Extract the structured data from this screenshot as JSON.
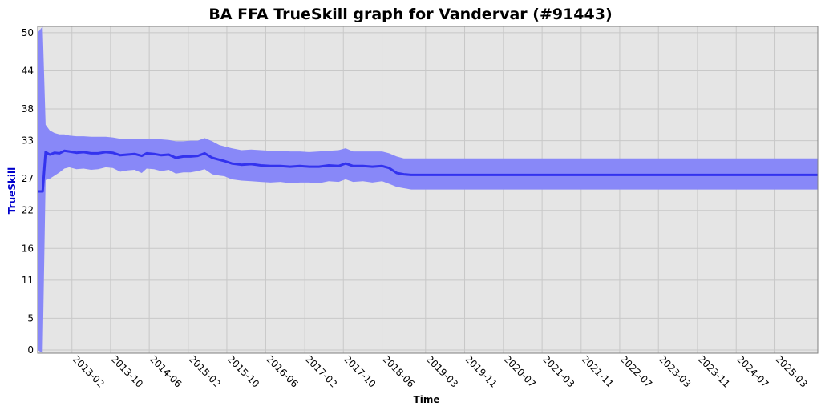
{
  "chart_data": {
    "type": "line",
    "title": "BA FFA TrueSkill graph for Vandervar (#91443)",
    "xlabel": "Time",
    "ylabel": "TrueSkill",
    "ylim": [
      -0.5,
      51
    ],
    "yticks": [
      0,
      5,
      11,
      16,
      22,
      27,
      33,
      38,
      44,
      50
    ],
    "xlim": [
      "2012-07-01",
      "2025-11-25"
    ],
    "xticks": [
      "2013-02",
      "2013-10",
      "2014-06",
      "2015-02",
      "2015-10",
      "2016-06",
      "2017-02",
      "2017-10",
      "2018-06",
      "2019-03",
      "2019-11",
      "2020-07",
      "2021-03",
      "2021-11",
      "2022-07",
      "2023-03",
      "2023-11",
      "2024-07",
      "2025-03"
    ],
    "grid": true,
    "legend": "none",
    "colors": {
      "line": "#3333ee",
      "band": "#8888f8",
      "plot_bg": "#e5e5e5",
      "ylabel": "#0000cc"
    },
    "series": [
      {
        "x": [
          "2012-07-01",
          "2012-08-01",
          "2012-08-20",
          "2012-09-15",
          "2012-10-15",
          "2012-11-15",
          "2012-12-15",
          "2013-01-15",
          "2013-03-01",
          "2013-04-15",
          "2013-06-01",
          "2013-07-15",
          "2013-09-01",
          "2013-10-15",
          "2013-12-01",
          "2014-01-15",
          "2014-03-01",
          "2014-04-15",
          "2014-05-15",
          "2014-07-01",
          "2014-08-15",
          "2014-10-01",
          "2014-11-15",
          "2015-01-01",
          "2015-02-15",
          "2015-04-01",
          "2015-05-15",
          "2015-07-01",
          "2015-08-15",
          "2015-09-15",
          "2015-11-01",
          "2016-01-01",
          "2016-03-01",
          "2016-05-01",
          "2016-07-01",
          "2016-09-01",
          "2016-11-01",
          "2017-01-01",
          "2017-03-01",
          "2017-05-01",
          "2017-07-01",
          "2017-09-01",
          "2017-10-15",
          "2017-12-01",
          "2018-02-01",
          "2018-04-01",
          "2018-06-01",
          "2018-07-15",
          "2018-09-01",
          "2018-10-15",
          "2018-12-01",
          "2019-03-01",
          "2020-01-01",
          "2021-01-01",
          "2022-01-01",
          "2023-01-01",
          "2024-01-01",
          "2025-01-01",
          "2025-11-25"
        ],
        "mean": [
          25.0,
          25.0,
          31.2,
          30.8,
          31.1,
          31.0,
          31.4,
          31.3,
          31.1,
          31.2,
          31.0,
          31.0,
          31.2,
          31.1,
          30.7,
          30.8,
          30.9,
          30.6,
          31.0,
          30.9,
          30.7,
          30.8,
          30.3,
          30.5,
          30.5,
          30.6,
          31.0,
          30.3,
          30.0,
          29.8,
          29.4,
          29.2,
          29.3,
          29.1,
          29.0,
          29.0,
          28.9,
          29.0,
          28.9,
          28.9,
          29.1,
          29.0,
          29.4,
          29.0,
          29.0,
          28.9,
          29.0,
          28.7,
          27.9,
          27.7,
          27.6,
          27.6,
          27.6,
          27.6,
          27.6,
          27.6,
          27.6,
          27.6,
          27.6
        ],
        "upper": [
          50.0,
          51.0,
          35.5,
          34.6,
          34.2,
          34.0,
          34.0,
          33.8,
          33.7,
          33.7,
          33.6,
          33.6,
          33.6,
          33.5,
          33.3,
          33.2,
          33.3,
          33.3,
          33.3,
          33.2,
          33.2,
          33.1,
          32.9,
          32.9,
          33.0,
          33.0,
          33.4,
          32.9,
          32.3,
          32.1,
          31.8,
          31.5,
          31.6,
          31.5,
          31.4,
          31.4,
          31.3,
          31.3,
          31.2,
          31.3,
          31.4,
          31.5,
          31.8,
          31.3,
          31.3,
          31.3,
          31.3,
          31.0,
          30.5,
          30.2,
          30.2,
          30.2,
          30.2,
          30.2,
          30.2,
          30.2,
          30.2,
          30.2,
          30.2
        ],
        "lower": [
          0.0,
          -0.5,
          26.8,
          27.0,
          27.5,
          28.0,
          28.6,
          28.8,
          28.5,
          28.6,
          28.4,
          28.5,
          28.8,
          28.7,
          28.1,
          28.3,
          28.4,
          27.9,
          28.6,
          28.5,
          28.2,
          28.4,
          27.8,
          28.0,
          28.0,
          28.2,
          28.5,
          27.7,
          27.5,
          27.4,
          26.9,
          26.7,
          26.6,
          26.5,
          26.4,
          26.5,
          26.3,
          26.4,
          26.4,
          26.3,
          26.6,
          26.5,
          26.9,
          26.5,
          26.6,
          26.4,
          26.6,
          26.2,
          25.7,
          25.5,
          25.3,
          25.3,
          25.3,
          25.3,
          25.3,
          25.3,
          25.3,
          25.3,
          25.3
        ]
      }
    ]
  }
}
